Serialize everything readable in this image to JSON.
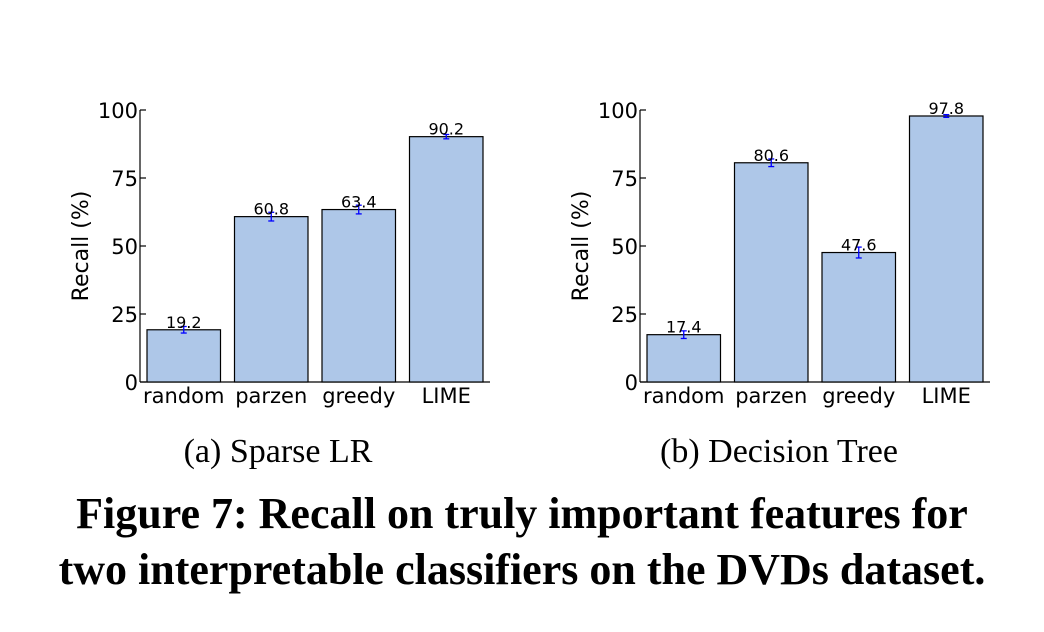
{
  "chart_data": [
    {
      "type": "bar",
      "subcaption": "(a) Sparse LR",
      "categories": [
        "random",
        "parzen",
        "greedy",
        "LIME"
      ],
      "values": [
        19.2,
        60.8,
        63.4,
        90.2
      ],
      "value_labels": [
        "19.2",
        "60.8",
        "63.4",
        "90.2"
      ],
      "error": [
        1.2,
        1.6,
        1.6,
        0.8
      ],
      "ylabel": "Recall (%)",
      "ylim": [
        0,
        100
      ],
      "yticks": [
        "0",
        "25",
        "50",
        "75",
        "100"
      ],
      "grid": false,
      "bar_color": "#aec7e8",
      "error_color": "#0000ff"
    },
    {
      "type": "bar",
      "subcaption": "(b) Decision Tree",
      "categories": [
        "random",
        "parzen",
        "greedy",
        "LIME"
      ],
      "values": [
        17.4,
        80.6,
        47.6,
        97.8
      ],
      "value_labels": [
        "17.4",
        "80.6",
        "47.6",
        "97.8"
      ],
      "error": [
        1.4,
        1.4,
        2.0,
        0.5
      ],
      "ylabel": "Recall (%)",
      "ylim": [
        0,
        100
      ],
      "yticks": [
        "0",
        "25",
        "50",
        "75",
        "100"
      ],
      "grid": false,
      "bar_color": "#aec7e8",
      "error_color": "#0000ff"
    }
  ],
  "caption": {
    "line1": "Figure 7:  Recall on truly important features for",
    "line2": "two interpretable classifiers on the DVDs dataset."
  }
}
